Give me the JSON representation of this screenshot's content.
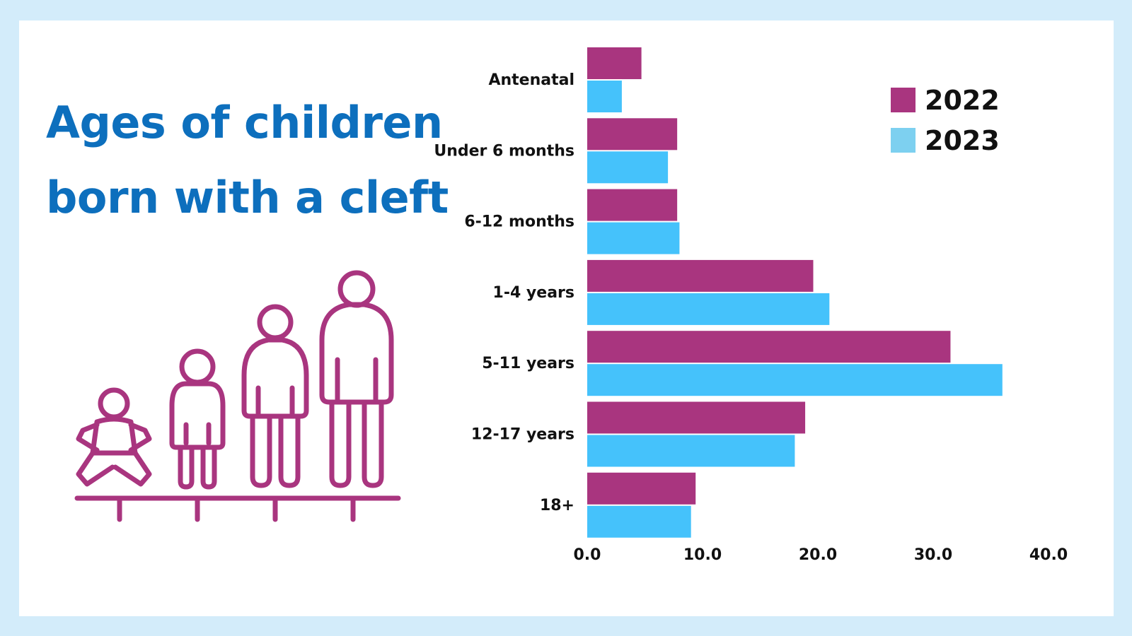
{
  "title_lines": [
    "Ages of children",
    "born with a cleft"
  ],
  "icons": {
    "illustration": "children-growing-icon",
    "stroke_color": "#a9357f"
  },
  "chart_data": {
    "type": "bar",
    "orientation": "horizontal",
    "categories": [
      "Antenatal",
      "Under 6 months",
      "6-12 months",
      "1-4 years",
      "5-11 years",
      "12-17 years",
      "18+"
    ],
    "series": [
      {
        "name": "2022",
        "color": "#a9357f",
        "values": [
          4.7,
          7.8,
          7.8,
          19.6,
          31.5,
          18.9,
          9.4
        ]
      },
      {
        "name": "2023",
        "color": "#45c2fb",
        "values": [
          3.0,
          7.0,
          8.0,
          21.0,
          36.0,
          18.0,
          9.0
        ]
      }
    ],
    "legend_colors": [
      "#a9357f",
      "#7dd0f0"
    ],
    "xlim": [
      0,
      40
    ],
    "xticks": [
      "0.0",
      "10.0",
      "20.0",
      "30.0",
      "40.0"
    ],
    "legend_position": "top-right",
    "grid": false
  }
}
